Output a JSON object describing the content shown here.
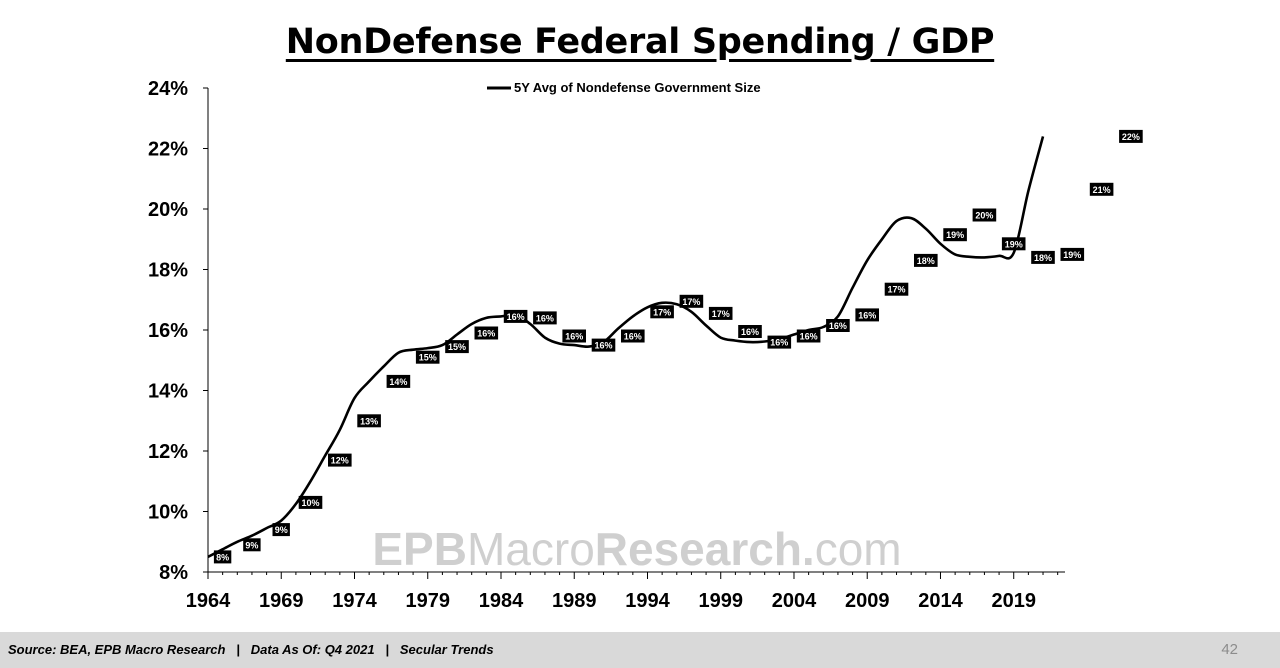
{
  "page": {
    "footer_text": "Source: BEA, EPB Macro Research   |   Data As Of: Q4 2021   |   Secular Trends",
    "page_number": "42"
  },
  "watermark": {
    "part1": "EPB",
    "part2": "Macro",
    "part3": "Research.",
    "part4": "com"
  },
  "chart_data": {
    "type": "line",
    "title": "NonDefense Federal Spending / GDP",
    "xlabel": "",
    "ylabel": "",
    "xlim": [
      1964,
      2022.5
    ],
    "ylim": [
      8,
      24
    ],
    "y_ticks": [
      8,
      10,
      12,
      14,
      16,
      18,
      20,
      22,
      24
    ],
    "y_tick_labels": [
      "8%",
      "10%",
      "12%",
      "14%",
      "16%",
      "18%",
      "20%",
      "22%",
      "24%"
    ],
    "x_ticks": [
      1964,
      1969,
      1974,
      1979,
      1984,
      1989,
      1994,
      1999,
      2004,
      2009,
      2014,
      2019
    ],
    "x_tick_labels": [
      "1964",
      "1969",
      "1974",
      "1979",
      "1984",
      "1989",
      "1994",
      "1999",
      "2004",
      "2009",
      "2014",
      "2019"
    ],
    "legend": {
      "position": "top-center",
      "label": "5Y Avg of Nondefense Government Size"
    },
    "series": [
      {
        "name": "5Y Avg of Nondefense Government Size",
        "color": "#000000",
        "x": [
          1964,
          1965,
          1966,
          1967,
          1968,
          1969,
          1970,
          1971,
          1972,
          1973,
          1974,
          1975,
          1976,
          1977,
          1978,
          1979,
          1980,
          1981,
          1982,
          1983,
          1984,
          1985,
          1986,
          1987,
          1988,
          1989,
          1990,
          1991,
          1992,
          1993,
          1994,
          1995,
          1996,
          1997,
          1998,
          1999,
          2000,
          2001,
          2002,
          2003,
          2004,
          2005,
          2006,
          2007,
          2008,
          2009,
          2010,
          2011,
          2012,
          2013,
          2014,
          2015,
          2016,
          2017,
          2018,
          2019,
          2020,
          2021
        ],
        "values": [
          8.5,
          8.75,
          9.0,
          9.2,
          9.45,
          9.7,
          10.25,
          11.0,
          11.85,
          12.7,
          13.75,
          14.3,
          14.8,
          15.25,
          15.35,
          15.4,
          15.5,
          15.85,
          16.2,
          16.4,
          16.45,
          16.5,
          16.2,
          15.75,
          15.55,
          15.5,
          15.45,
          15.6,
          16.05,
          16.45,
          16.75,
          16.9,
          16.85,
          16.6,
          16.15,
          15.75,
          15.65,
          15.6,
          15.62,
          15.7,
          15.85,
          16.0,
          16.1,
          16.45,
          17.4,
          18.3,
          19.0,
          19.6,
          19.7,
          19.35,
          18.85,
          18.5,
          18.42,
          18.4,
          18.45,
          18.55,
          20.6,
          22.4
        ]
      }
    ],
    "data_labels": [
      {
        "x": 1965,
        "y": 8.5,
        "text": "8%"
      },
      {
        "x": 1967,
        "y": 8.9,
        "text": "9%"
      },
      {
        "x": 1969,
        "y": 9.4,
        "text": "9%"
      },
      {
        "x": 1971,
        "y": 10.3,
        "text": "10%"
      },
      {
        "x": 1973,
        "y": 11.7,
        "text": "12%"
      },
      {
        "x": 1975,
        "y": 13.0,
        "text": "13%"
      },
      {
        "x": 1977,
        "y": 14.3,
        "text": "14%"
      },
      {
        "x": 1979,
        "y": 15.1,
        "text": "15%"
      },
      {
        "x": 1981,
        "y": 15.45,
        "text": "15%"
      },
      {
        "x": 1983,
        "y": 15.9,
        "text": "16%"
      },
      {
        "x": 1985,
        "y": 16.45,
        "text": "16%"
      },
      {
        "x": 1987,
        "y": 16.4,
        "text": "16%"
      },
      {
        "x": 1989,
        "y": 15.8,
        "text": "16%"
      },
      {
        "x": 1991,
        "y": 15.5,
        "text": "16%"
      },
      {
        "x": 1993,
        "y": 15.8,
        "text": "16%"
      },
      {
        "x": 1995,
        "y": 16.6,
        "text": "17%"
      },
      {
        "x": 1997,
        "y": 16.95,
        "text": "17%"
      },
      {
        "x": 1999,
        "y": 16.55,
        "text": "17%"
      },
      {
        "x": 2001,
        "y": 15.95,
        "text": "16%"
      },
      {
        "x": 2003,
        "y": 15.6,
        "text": "16%"
      },
      {
        "x": 2005,
        "y": 15.8,
        "text": "16%"
      },
      {
        "x": 2007,
        "y": 16.15,
        "text": "16%"
      },
      {
        "x": 2009,
        "y": 16.5,
        "text": "16%"
      },
      {
        "x": 2011,
        "y": 17.35,
        "text": "17%"
      },
      {
        "x": 2013,
        "y": 18.3,
        "text": "18%"
      },
      {
        "x": 2015,
        "y": 19.15,
        "text": "19%"
      },
      {
        "x": 2017,
        "y": 19.8,
        "text": "20%"
      },
      {
        "x": 2019,
        "y": 18.85,
        "text": "19%"
      },
      {
        "x": 2021,
        "y": 18.4,
        "text": "18%"
      },
      {
        "x": 2023,
        "y": 18.5,
        "text": "19%"
      },
      {
        "x": 2025,
        "y": 20.65,
        "text": "21%"
      },
      {
        "x": 2027,
        "y": 22.4,
        "text": "22%"
      }
    ]
  }
}
